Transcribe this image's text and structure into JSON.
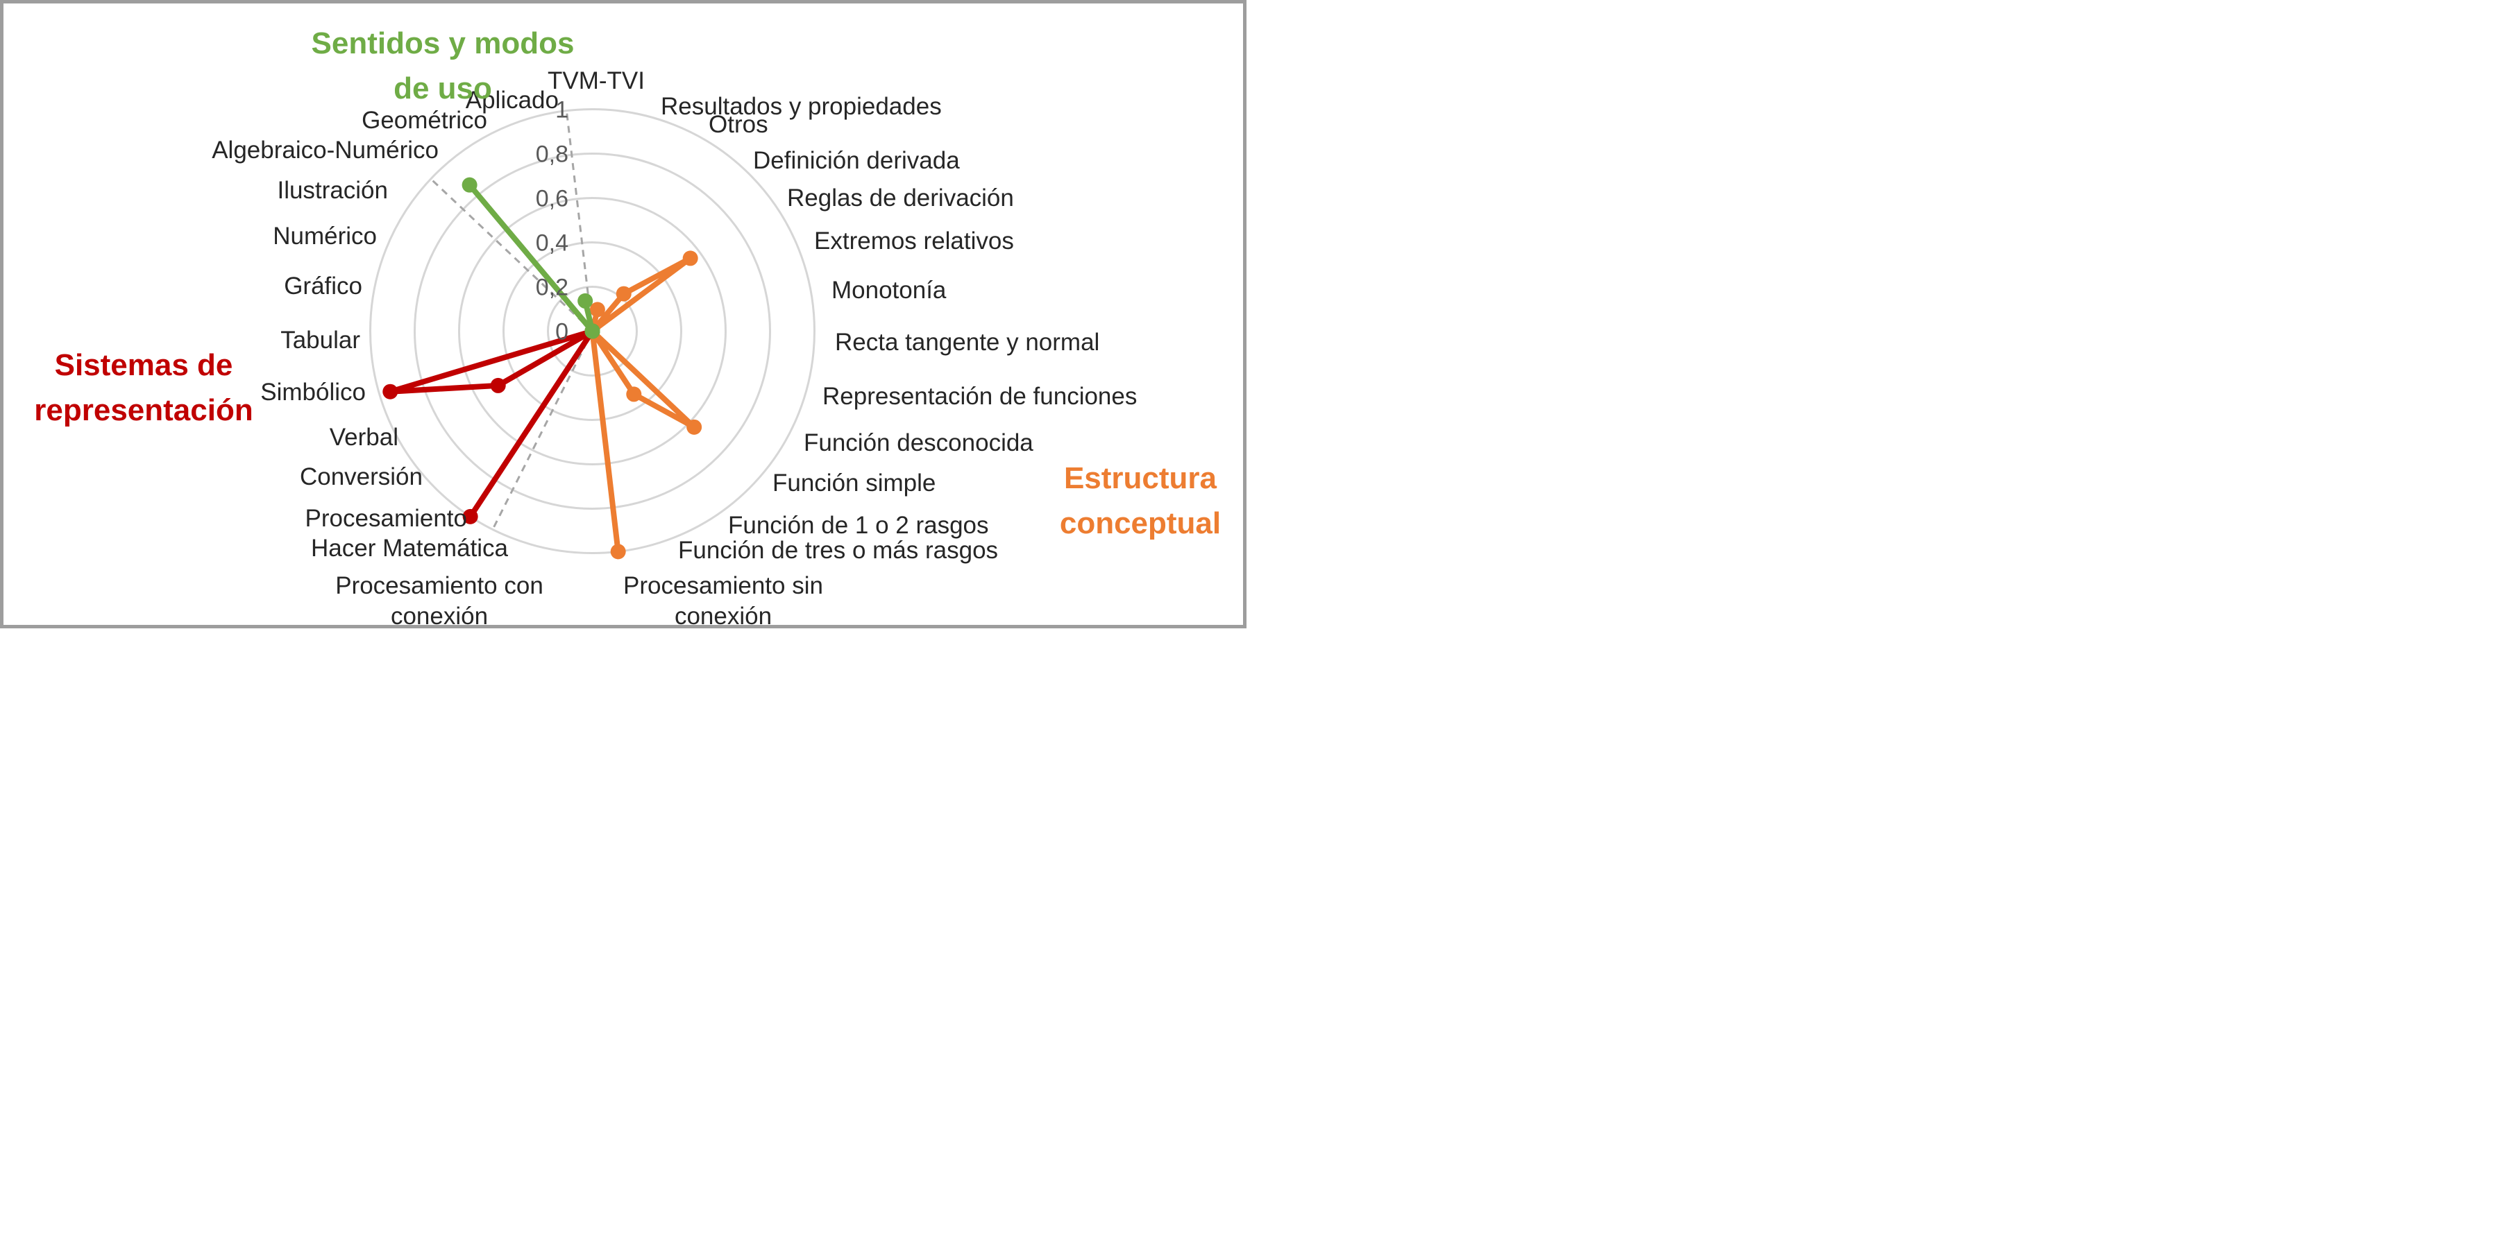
{
  "chart_data": {
    "type": "radar",
    "title": "",
    "grid": "circular-rings",
    "direction": "clockwise",
    "start_angle_deg": 0,
    "rmax": 1,
    "rmin": 0,
    "rtick_labels": [
      "1",
      "0,8",
      "0,6",
      "0,4",
      "0,2",
      "0"
    ],
    "rtick_values": [
      1,
      0.8,
      0.6,
      0.4,
      0.2,
      0
    ],
    "categories": [
      "TVM-TVI",
      "Resultados y propiedades",
      "Otros",
      "Definición derivada",
      "Reglas de derivación",
      "Extremos relativos",
      "Monotonía",
      "Recta tangente y normal",
      "Representación de funciones",
      "Función desconocida",
      "Función simple",
      "Función de 1 o 2 rasgos",
      "Función de tres o más rasgos",
      "Procesamiento sin\nconexión",
      "Procesamiento con\nconexión",
      "Hacer Matemática",
      "Procesamiento",
      "Conversión",
      "Verbal",
      "Simbólico",
      "Tabular",
      "Gráfico",
      "Numérico",
      "Ilustración",
      "Algebraico-Numérico",
      "Geométrico",
      "Aplicado"
    ],
    "series": [
      {
        "name": "Estructura conceptual",
        "color": "#ED7D31",
        "values": [
          0,
          0.1,
          0,
          0.22,
          0.55,
          0,
          0,
          0,
          0,
          0,
          0.63,
          0.34,
          0,
          1,
          0,
          0,
          0,
          0,
          0,
          0,
          0,
          0,
          0,
          0,
          0,
          0,
          0
        ]
      },
      {
        "name": "Sistemas de representación",
        "color": "#C00000",
        "values": [
          0,
          0,
          0,
          0,
          0,
          0,
          0,
          0,
          0,
          0,
          0,
          0,
          0,
          0,
          0,
          0,
          1,
          0,
          0.49,
          0.95,
          0,
          0,
          0,
          0,
          0,
          0,
          0
        ]
      },
      {
        "name": "Sentidos y modos de uso",
        "color": "#6FAC46",
        "values": [
          0,
          0,
          0,
          0,
          0,
          0,
          0,
          0,
          0,
          0,
          0,
          0,
          0,
          0,
          0,
          0,
          0,
          0,
          0,
          0,
          0,
          0,
          0,
          0,
          0.86,
          0,
          0.14
        ]
      }
    ],
    "separator_angles_deg": [
      206.67,
      313.33,
      353.33
    ],
    "legend_position": "around-chart"
  },
  "sector_titles": [
    {
      "id": "sentidos",
      "text": "Sentidos y modos\nde uso",
      "color": "#6FAC46"
    },
    {
      "id": "sistemas",
      "text": "Sistemas de\nrepresentación",
      "color": "#C00000"
    },
    {
      "id": "estructura",
      "text": "Estructura\nconceptual",
      "color": "#ED7D31"
    }
  ],
  "style_colors": {
    "grid_ring": "#D6D6D6",
    "separator": "#A6A6A6",
    "axis_label": "#262626",
    "tick_label": "#595959",
    "frame_border": "#9D9D9D"
  }
}
